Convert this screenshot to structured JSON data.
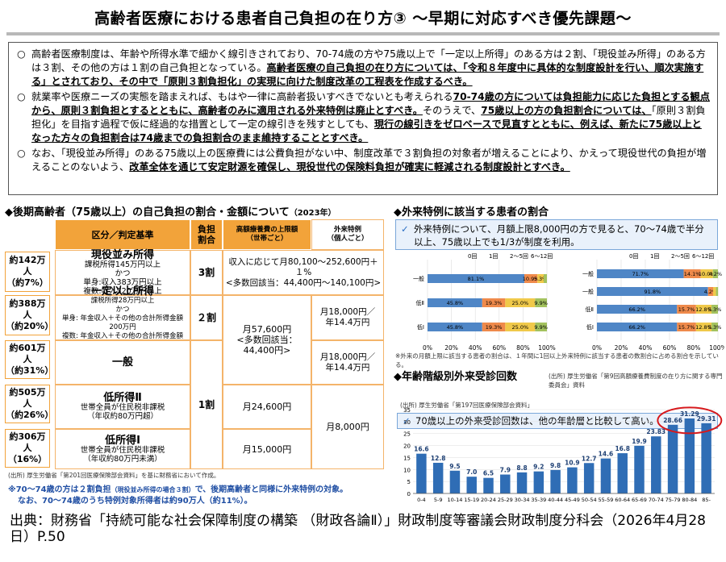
{
  "title": "高齢者医療における患者自己負担の在り方③ ～早期に対応すべき優先課題～",
  "intro": {
    "p1": [
      "高齢者医療制度は、年齢や所得水準で細かく線引きされており、70-74歳の方や75歳以上で「一定以上所得」のある方は２割、「現役並み所得」のある方は３割、その他の方は１割の自己負担となっている。",
      "高齢者医療の自己負担の在り方については、「令和８年度中に具体的な制度設計を行い、順次実施する」とされており、その中で「原則３割負担化」の実現に向けた制度改革の工程表を作成するべき。"
    ],
    "p2": [
      "就業率や医療ニーズの実態を踏まえれば、もはや一律に高齢者扱いすべきでないとも考えられる",
      "70-74歳の方については負担能力に応じた負担とする観点から、原則３割負担とするとともに、高齢者のみに適用される外来特例は廃止とすべき。",
      "そのうえで、",
      "75歳以上の方の負担割合については、",
      "「原則３割負担化」を目指す過程で仮に経過的な措置として一定の線引きを残すとしても、",
      "現行の線引きをゼロベースで見直すとともに、例えば、新たに75歳以上となった方々の負担割合は74歳までの負担割合のまま維持することとすべき。"
    ],
    "p3": [
      "なお、「現役並み所得」のある75歳以上の医療費には公費負担がない中、制度改革で３割負担の対象者が増えることにより、かえって現役世代の負担が増えることのないよう、",
      "改革全体を通じて安定財源を確保し、現役世代の保険料負担が確実に軽減される制度設計とすべき。"
    ],
    "bullet": "○"
  },
  "left": {
    "title": "◆後期高齢者（75歳以上）の自己負担の割合・金額について",
    "year": "（2023年）",
    "headers": {
      "kubun": "区分／判定基準",
      "ratio": "負担\n割合",
      "limit": "高額療養費の上限額\n（世帯ごと）",
      "gairai": "外来特例\n（個人ごと）"
    },
    "rows": [
      {
        "pop": "約142万人\n（約7%）",
        "name": "現役並み所得",
        "detail": "課税所得145万円以上\nかつ\n単身:収入383万円以上\n複数:収入520万円以上"
      },
      {
        "pop": "約388万人\n（約20%）",
        "name": "一定以上所得",
        "detail": "課税所得28万円以上\nかつ\n単身: 年金収入＋その他の合計所得金額200万円\n複数: 年金収入＋その他の合計所得金額320万円"
      },
      {
        "pop": "約601万人\n（約31%）",
        "name": "一般",
        "detail": ""
      },
      {
        "pop": "約505万人\n（約26%）",
        "name": "低所得Ⅱ",
        "detail": "世帯全員が住民税非課税\n（年収約80万円超）"
      },
      {
        "pop": "約306万人\n（16%）",
        "name": "低所得Ⅰ",
        "detail": "世帯全員が住民税非課税\n（年収約80万円未満）"
      }
    ],
    "ratio3": "3割",
    "ratio2": "２割",
    "ratio1": "1割",
    "limit_top": "収入に応じて月80,100～252,600円＋１%\n<多数回該当：44,400円～140,100円>",
    "limit_mid": "月57,600円\n<多数回該当：\n44,400円>",
    "limit_low2": "月24,600円",
    "limit_low1": "月15,000円",
    "gairai_mid1": "月18,000円／\n年14.4万円",
    "gairai_mid2": "月18,000円／\n年14.4万円",
    "gairai_low": "月8,000円",
    "source": "(出所) 厚生労働省「第201回医療保険部会資料」を基に財務省において作成。",
    "footnote1": "※70～74歳の方は２割負担",
    "footnote1s": "（現役並み所得の場合３割）",
    "footnote1b": "で、後期高齢者と同様に外来特例の対象。",
    "footnote2": "なお、70～74歳のうち特例対象所得者は約90万人（約11%）。"
  },
  "right_top": {
    "title": "◆外来特例に該当する患者の割合",
    "box": "外来特例について、月額上限8,000円の方で見ると、70～74歳で半分以上、75歳以上でも1/3が制度を利用。",
    "check": "✓",
    "legend": [
      "0回",
      "1回",
      "2～5回",
      "6～12回"
    ],
    "left_labels": [
      "月額上限\n18,000円",
      "一般",
      "月額上限\n8,000円",
      "低Ⅱ",
      "低Ⅰ"
    ],
    "right_labels": [
      "一般\n(窓口2割)",
      "一般\n(窓口1割)",
      "低Ⅱ",
      "低Ⅰ"
    ],
    "axis": [
      "0%",
      "20%",
      "40%",
      "60%",
      "80%",
      "100%"
    ],
    "note": "※外来の月額上限に該当する患者の割合は、１年間に1回以上外来特例に該当する患者の数割合に占める割合を示している。",
    "source": "(出所) 厚生労働省「第9回高額療養費制度の在り方に関する専門委員会」資料"
  },
  "right_top_chart": {
    "type": "bar",
    "left_bars": [
      {
        "label": "一般",
        "values": [
          81.1,
          10.9,
          5.3,
          2.7
        ]
      },
      {
        "label": "低Ⅱ",
        "values": [
          45.8,
          19.3,
          25.0,
          9.9
        ]
      },
      {
        "label": "低Ⅰ",
        "values": [
          45.8,
          19.3,
          25.0,
          9.9
        ]
      }
    ],
    "right_bars": [
      {
        "label": "一般(窓口2割)",
        "values": [
          71.7,
          14.1,
          10.0,
          4.2
        ]
      },
      {
        "label": "一般(窓口1割)",
        "values": [
          91.8,
          4.2,
          2.4,
          1.7
        ]
      },
      {
        "label": "低Ⅱ",
        "values": [
          66.2,
          15.7,
          12.8,
          5.3
        ]
      },
      {
        "label": "低Ⅰ",
        "values": [
          66.2,
          15.7,
          12.8,
          5.3
        ]
      }
    ],
    "colors": [
      "#4f86c6",
      "#ef8a4b",
      "#f0c94a",
      "#a3c25e"
    ]
  },
  "right_bottom": {
    "title": "◆年齢階級別外来受診回数",
    "source": "(出所) 厚生労働省「第197回医療保険部会資料」",
    "box": "70歳以上の外来受診回数は、他の年齢層と比較して高い。",
    "check": "✓"
  },
  "chart_data": {
    "type": "bar",
    "categories": [
      "0-4",
      "5-9",
      "10-14",
      "15-19",
      "20-24",
      "25-29",
      "30-34",
      "35-39",
      "40-44",
      "45-49",
      "50-54",
      "55-59",
      "60-64",
      "65-69",
      "70-74",
      "75-79",
      "80-84",
      "85-"
    ],
    "values": [
      16.6,
      12.8,
      9.5,
      7.0,
      6.5,
      7.9,
      8.8,
      9.2,
      9.8,
      10.9,
      12.7,
      14.6,
      16.8,
      19.9,
      23.83,
      28.66,
      31.29,
      29.31
    ],
    "value_labels": [
      "16.6",
      "12.8",
      "9.5",
      "7.0",
      "6.5",
      "7.9",
      "8.8",
      "9.2",
      "9.8",
      "10.9",
      "12.7",
      "14.6",
      "16.8",
      "19.9",
      "23.83",
      "28.66",
      "31.29",
      "29.31"
    ],
    "yticks": [
      0,
      5,
      10,
      15,
      20,
      25,
      30,
      35
    ],
    "ylim": [
      0,
      35
    ],
    "bar_color": "#2f6db5",
    "highlight_color": "#d7191c"
  },
  "footer": "出典：財務省「持続可能な社会保障制度の構築 （財政各論Ⅱ）」財政制度等審議会財政制度分科会（2026年4月28日）P.50"
}
